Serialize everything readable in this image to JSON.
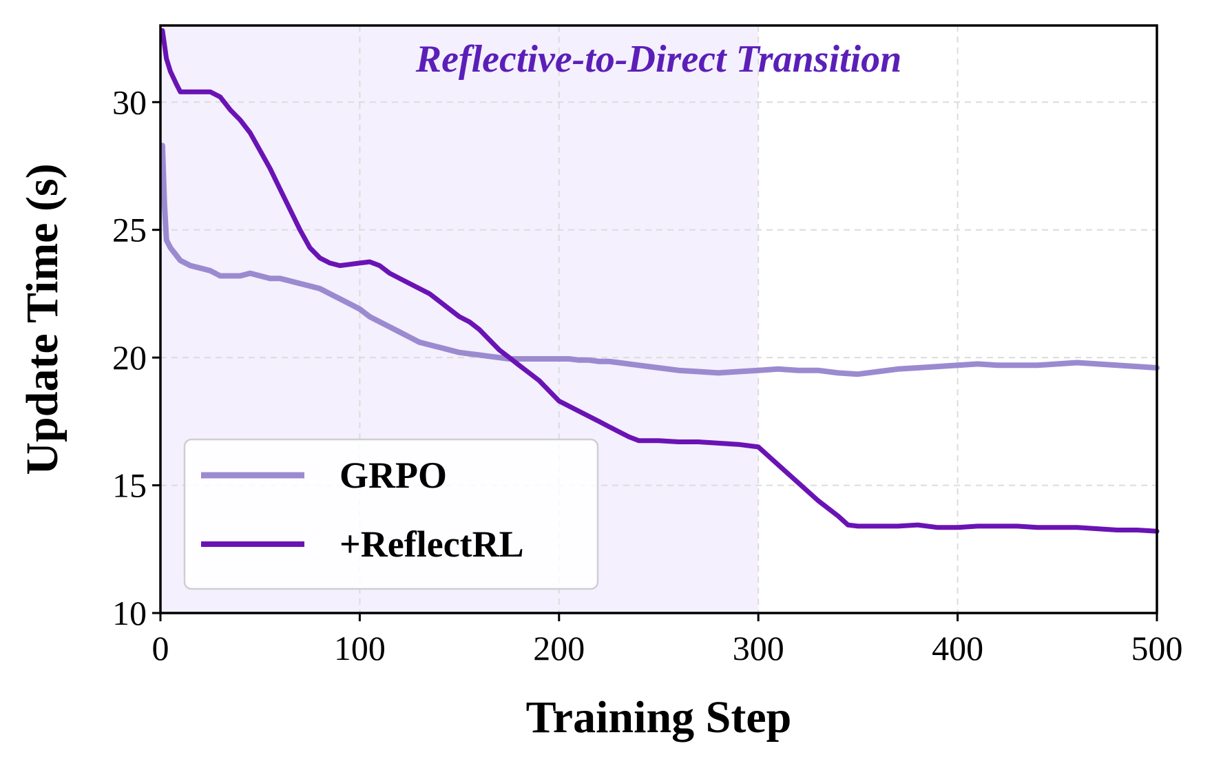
{
  "chart_data": {
    "type": "line",
    "title": "",
    "xlabel": "Training Step",
    "ylabel": "Update Time (s)",
    "xlim": [
      0,
      500
    ],
    "ylim": [
      10,
      33
    ],
    "xticks": [
      0,
      100,
      200,
      300,
      400,
      500
    ],
    "yticks": [
      10,
      15,
      20,
      25,
      30
    ],
    "xtick_labels": [
      "0",
      "100",
      "200",
      "300",
      "400",
      "500"
    ],
    "ytick_labels": [
      "10",
      "15",
      "20",
      "25",
      "30"
    ],
    "grid": true,
    "legend_position": "lower-left",
    "shaded_region": {
      "x": [
        0,
        300
      ],
      "color": "#f4f0fd"
    },
    "annotation": {
      "text": "Reflective-to-Direct Transition",
      "x": 250,
      "y": 31.2,
      "color": "#5b1fb8"
    },
    "series": [
      {
        "name": "GRPO",
        "color": "#9b8ad0",
        "x": [
          1,
          2,
          3,
          5,
          10,
          15,
          20,
          25,
          30,
          35,
          40,
          45,
          50,
          55,
          60,
          65,
          70,
          75,
          80,
          85,
          90,
          95,
          100,
          105,
          110,
          115,
          120,
          125,
          130,
          135,
          140,
          145,
          150,
          155,
          160,
          165,
          170,
          175,
          180,
          185,
          190,
          195,
          200,
          205,
          210,
          215,
          220,
          225,
          230,
          240,
          250,
          260,
          270,
          280,
          290,
          300,
          310,
          320,
          330,
          340,
          350,
          360,
          370,
          380,
          390,
          400,
          410,
          420,
          430,
          440,
          450,
          460,
          470,
          480,
          490,
          500
        ],
        "y": [
          28.3,
          26.0,
          24.6,
          24.3,
          23.8,
          23.6,
          23.5,
          23.4,
          23.2,
          23.2,
          23.2,
          23.3,
          23.2,
          23.1,
          23.1,
          23.0,
          22.9,
          22.8,
          22.7,
          22.5,
          22.3,
          22.1,
          21.9,
          21.6,
          21.4,
          21.2,
          21.0,
          20.8,
          20.6,
          20.5,
          20.4,
          20.3,
          20.2,
          20.15,
          20.1,
          20.05,
          20.0,
          19.95,
          19.95,
          19.95,
          19.95,
          19.95,
          19.95,
          19.95,
          19.9,
          19.9,
          19.85,
          19.85,
          19.8,
          19.7,
          19.6,
          19.5,
          19.45,
          19.4,
          19.45,
          19.5,
          19.55,
          19.5,
          19.5,
          19.4,
          19.35,
          19.45,
          19.55,
          19.6,
          19.65,
          19.7,
          19.75,
          19.7,
          19.7,
          19.7,
          19.75,
          19.8,
          19.75,
          19.7,
          19.65,
          19.6
        ]
      },
      {
        "name": "+ReflectRL",
        "color": "#6a13b5",
        "x": [
          1,
          3,
          5,
          8,
          10,
          15,
          20,
          25,
          30,
          35,
          40,
          45,
          50,
          55,
          60,
          65,
          70,
          75,
          80,
          85,
          90,
          95,
          100,
          105,
          110,
          115,
          120,
          125,
          130,
          135,
          140,
          145,
          150,
          155,
          160,
          165,
          170,
          175,
          180,
          185,
          190,
          195,
          200,
          205,
          210,
          215,
          220,
          225,
          230,
          235,
          240,
          250,
          260,
          270,
          280,
          290,
          300,
          310,
          320,
          330,
          340,
          345,
          350,
          360,
          370,
          380,
          390,
          400,
          410,
          420,
          430,
          440,
          450,
          460,
          470,
          480,
          490,
          500
        ],
        "y": [
          32.8,
          31.7,
          31.2,
          30.7,
          30.4,
          30.4,
          30.4,
          30.4,
          30.2,
          29.7,
          29.3,
          28.8,
          28.1,
          27.4,
          26.6,
          25.8,
          25.0,
          24.3,
          23.9,
          23.7,
          23.6,
          23.65,
          23.7,
          23.75,
          23.6,
          23.3,
          23.1,
          22.9,
          22.7,
          22.5,
          22.2,
          21.9,
          21.6,
          21.4,
          21.1,
          20.7,
          20.3,
          20.0,
          19.7,
          19.4,
          19.1,
          18.7,
          18.3,
          18.1,
          17.9,
          17.7,
          17.5,
          17.3,
          17.1,
          16.9,
          16.75,
          16.75,
          16.7,
          16.7,
          16.65,
          16.6,
          16.5,
          15.8,
          15.1,
          14.4,
          13.8,
          13.45,
          13.4,
          13.4,
          13.4,
          13.45,
          13.35,
          13.35,
          13.4,
          13.4,
          13.4,
          13.35,
          13.35,
          13.35,
          13.3,
          13.25,
          13.25,
          13.2
        ]
      }
    ]
  }
}
